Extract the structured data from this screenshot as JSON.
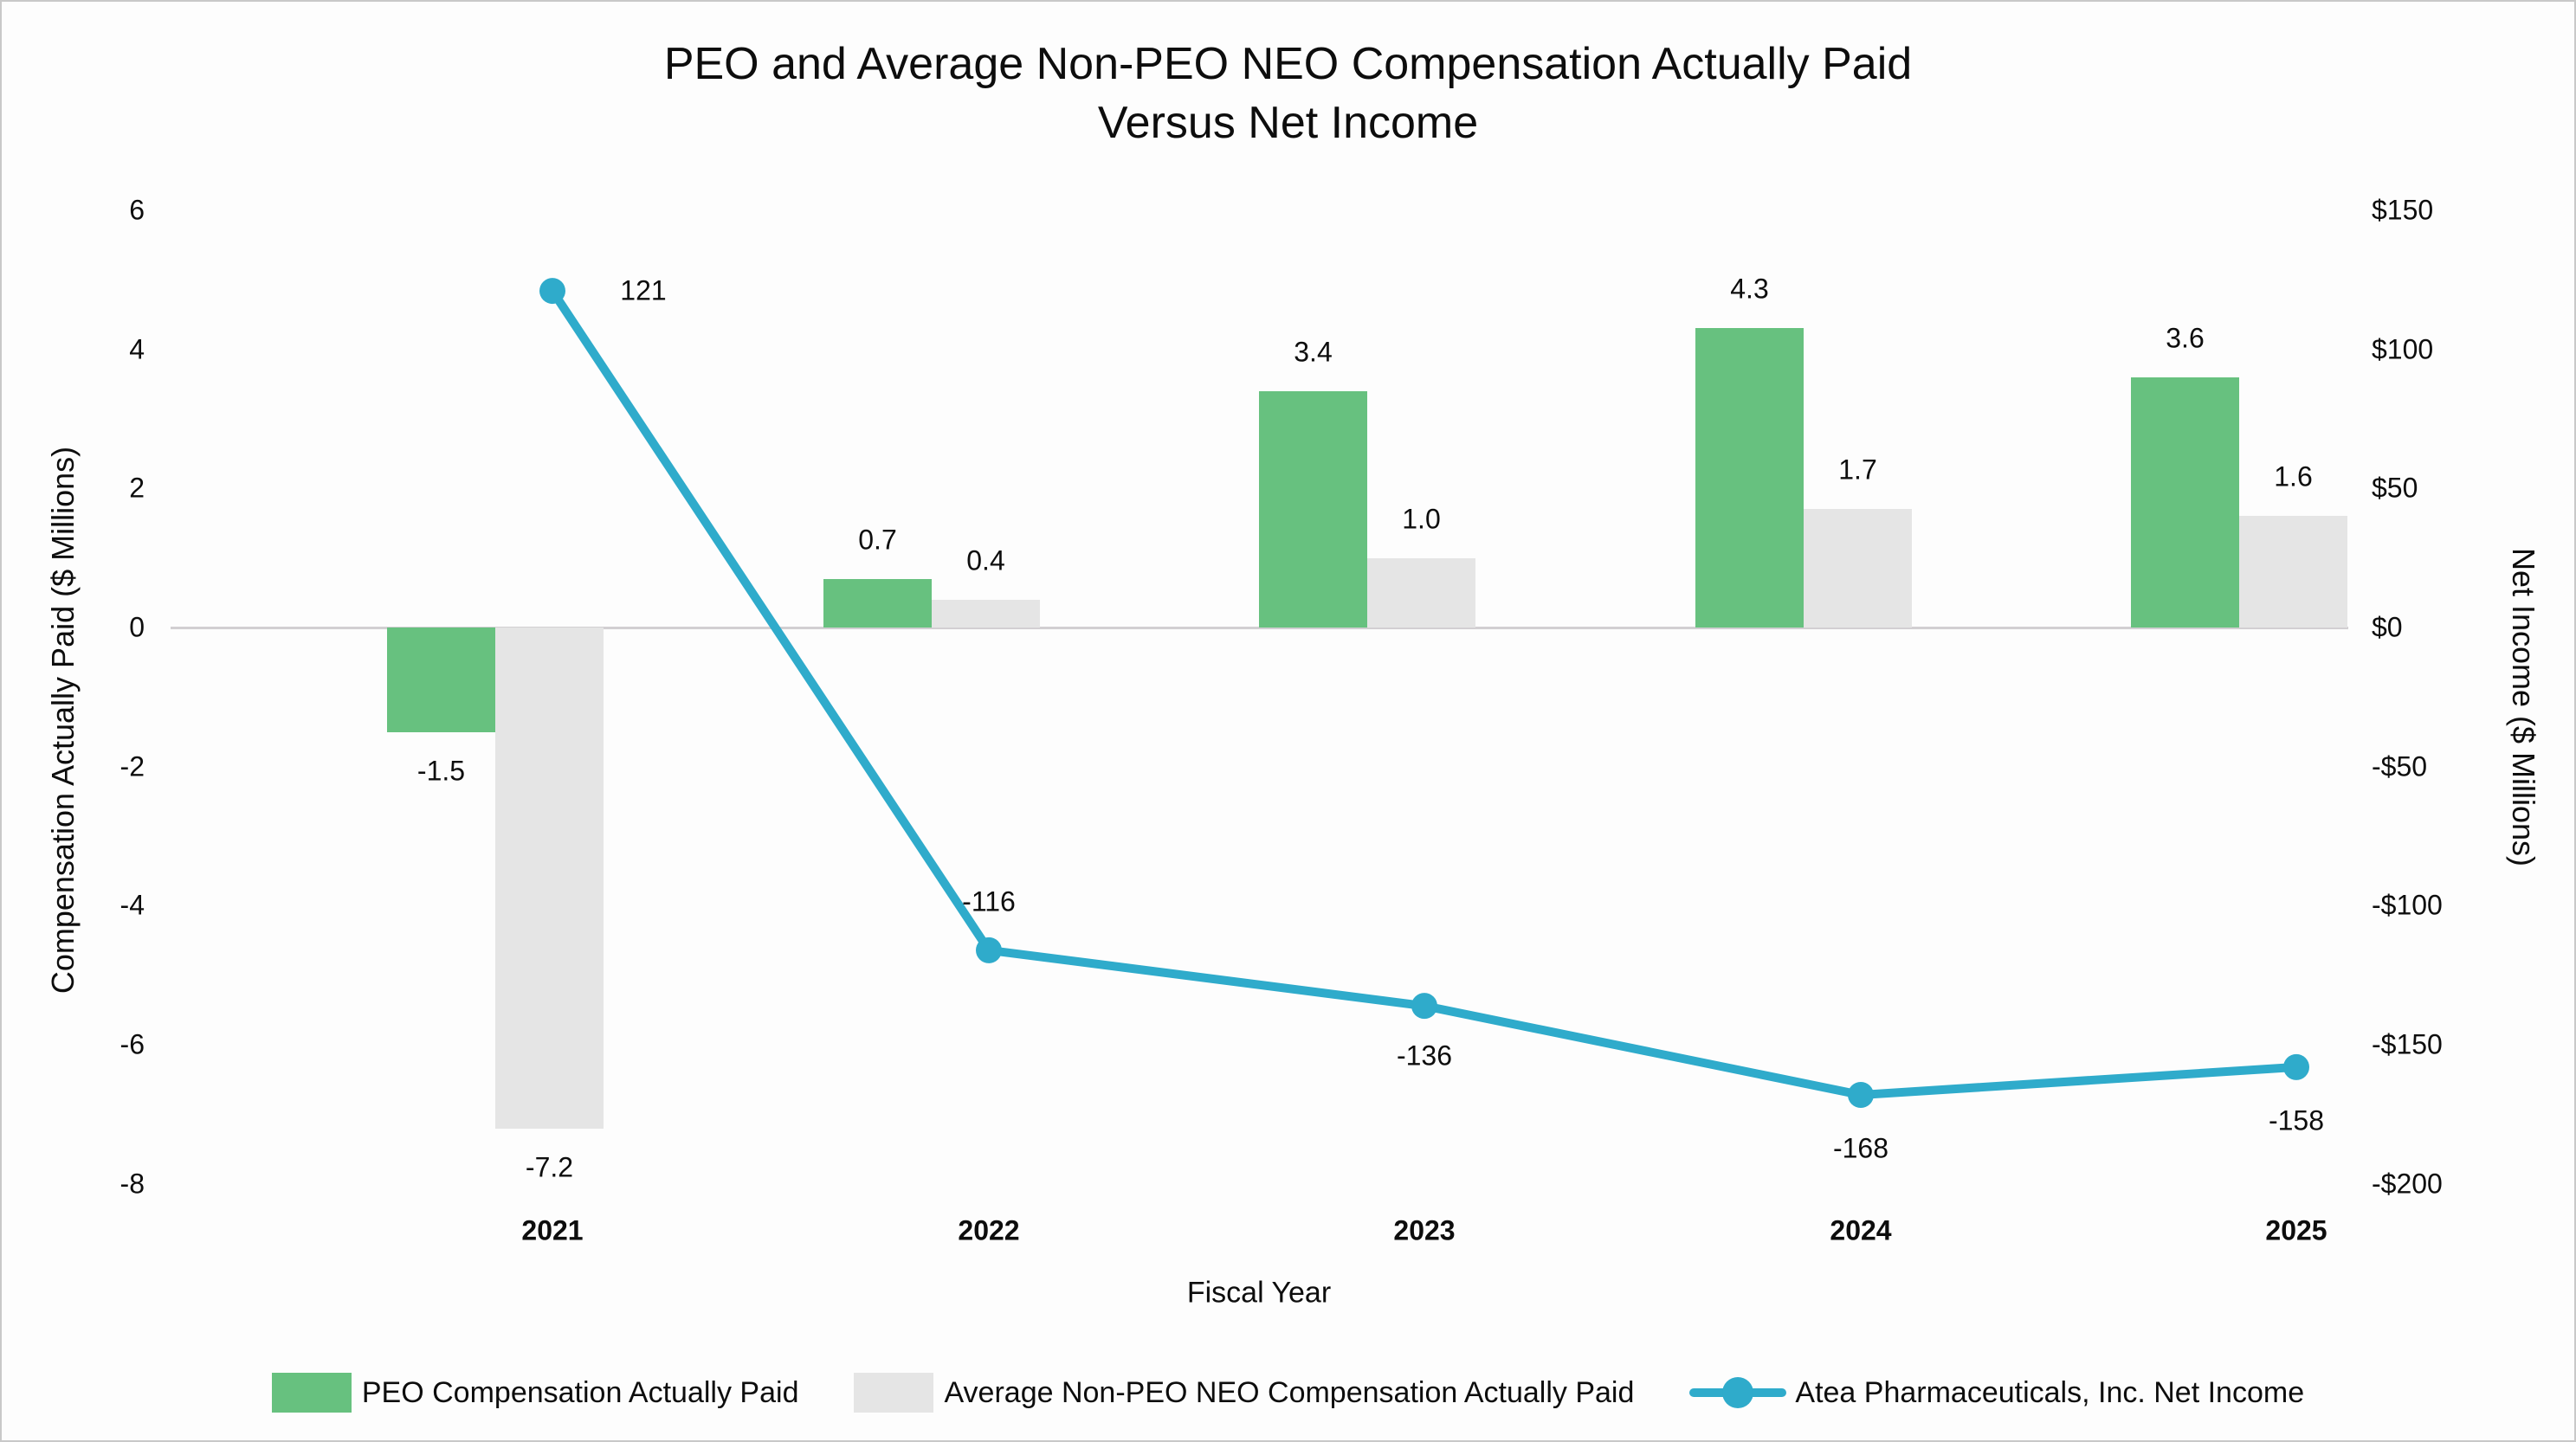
{
  "title": {
    "line1": "PEO and Average Non-PEO NEO Compensation Actually Paid",
    "line2": "Versus Net Income"
  },
  "chart_data": {
    "type": "combo",
    "categories": [
      "2021",
      "2022",
      "2023",
      "2024",
      "2025"
    ],
    "series": [
      {
        "name": "PEO Compensation Actually Paid",
        "type": "bar",
        "axis": "left",
        "color": "#67C17F",
        "values": [
          -1.5,
          0.7,
          3.4,
          4.3,
          3.6
        ],
        "labels": [
          "-1.5",
          "0.7",
          "3.4",
          "4.3",
          "3.6"
        ]
      },
      {
        "name": "Average Non-PEO NEO Compensation Actually Paid",
        "type": "bar",
        "axis": "left",
        "color": "#E5E5E5",
        "values": [
          -7.2,
          0.4,
          1.0,
          1.7,
          1.6
        ],
        "labels": [
          "-7.2",
          "0.4",
          "1.0",
          "1.7",
          "1.6"
        ]
      },
      {
        "name": "Atea Pharmaceuticals, Inc. Net Income",
        "type": "line",
        "axis": "right",
        "color": "#2FABCB",
        "values": [
          121,
          -116,
          -136,
          -168,
          -158
        ],
        "labels": [
          "121",
          "-116",
          "-136",
          "-168",
          "-158"
        ]
      }
    ],
    "left_axis": {
      "title": "Compensation Actually Paid ($ Millions)",
      "ticks": [
        6,
        4,
        2,
        0,
        -2,
        -4,
        -6,
        -8
      ],
      "tick_labels": [
        "6",
        "4",
        "2",
        "0",
        "-2",
        "-4",
        "-6",
        "-8"
      ],
      "range": [
        -8,
        6
      ]
    },
    "right_axis": {
      "title": "Net Income ($ Millions)",
      "ticks": [
        150,
        100,
        50,
        0,
        -50,
        -100,
        -150,
        -200
      ],
      "tick_labels": [
        "$150",
        "$100",
        "$50",
        "$0",
        "-$50",
        "-$100",
        "-$150",
        "-$200"
      ],
      "range": [
        -200,
        150
      ]
    },
    "x_axis": {
      "title": "Fiscal Year"
    },
    "legend_position": "bottom",
    "grid": "zero-line-only",
    "zero_line_color": "#D2CFD2"
  }
}
